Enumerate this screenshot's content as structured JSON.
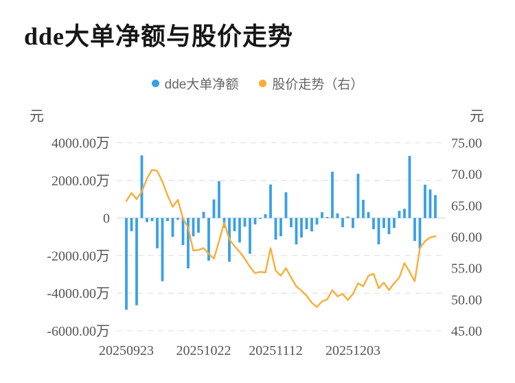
{
  "title": {
    "text": "dde大单净额与股价走势"
  },
  "legend": {
    "items": [
      {
        "label": "dde大单净额",
        "color": "#38a0e8",
        "marker": "circle"
      },
      {
        "label": "股价走势（右）",
        "color": "#fbad34",
        "marker": "circle"
      }
    ]
  },
  "axes": {
    "left": {
      "unit": "元",
      "tick_labels": [
        "4000.00万",
        "2000.00万",
        "0",
        "-2000.00万",
        "-4000.00万",
        "-6000.00万"
      ]
    },
    "right": {
      "unit": "元",
      "tick_labels": [
        "75.00",
        "70.00",
        "65.00",
        "60.00",
        "55.00",
        "50.00",
        "45.00"
      ]
    },
    "x": {
      "tick_labels": [
        {
          "index": 0,
          "label": "20250923"
        },
        {
          "index": 15,
          "label": "20251022"
        },
        {
          "index": 29,
          "label": "20251112"
        },
        {
          "index": 44,
          "label": "20251203"
        }
      ]
    }
  },
  "chart_data": {
    "type": "bar+line",
    "title": "dde大单净额与股价走势",
    "x_visible_tick_labels": [
      "20250923",
      "20251022",
      "20251112",
      "20251203"
    ],
    "left_axis": {
      "unit": "元",
      "range_wan": [
        -6000,
        4000
      ],
      "tick_step_wan": 2000
    },
    "right_axis": {
      "unit": "元",
      "range": [
        45,
        75
      ],
      "tick_step": 5
    },
    "grid": {
      "horizontal": "dashed",
      "zero_line": "solid"
    },
    "legend_position": "top-center",
    "series": [
      {
        "name": "dde大单净额",
        "type": "bar",
        "axis": "left",
        "unit": "万元",
        "color": "#38a0e8",
        "values": [
          -4880,
          -700,
          -4640,
          3330,
          -220,
          -160,
          -1610,
          -3360,
          -160,
          -1000,
          -100,
          -1440,
          -2680,
          -970,
          -780,
          330,
          -2270,
          990,
          1960,
          -520,
          -2330,
          -700,
          -1300,
          -460,
          -1900,
          -340,
          -50,
          200,
          1780,
          -1150,
          -970,
          1370,
          -490,
          -1400,
          -1040,
          -600,
          -710,
          -350,
          310,
          60,
          2460,
          240,
          -490,
          80,
          -530,
          2350,
          970,
          310,
          -600,
          -1400,
          -530,
          -860,
          -530,
          380,
          490,
          3300,
          -1220,
          -1620,
          1770,
          1520,
          1220
        ]
      },
      {
        "name": "股价走势（右）",
        "type": "line",
        "axis": "right",
        "unit": "元",
        "color": "#fbad34",
        "values": [
          65.7,
          67.0,
          66.0,
          67.2,
          69.3,
          70.7,
          70.5,
          68.8,
          66.6,
          64.8,
          65.9,
          62.9,
          61.5,
          57.8,
          57.9,
          58.2,
          57.3,
          56.5,
          59.3,
          62.3,
          59.6,
          58.5,
          57.6,
          56.5,
          55.2,
          54.2,
          54.4,
          54.3,
          58.2,
          54.6,
          53.8,
          55.0,
          53.5,
          52.1,
          51.4,
          50.6,
          49.5,
          48.8,
          49.7,
          50.0,
          51.5,
          50.5,
          50.9,
          49.9,
          50.9,
          52.6,
          52.1,
          53.8,
          54.1,
          51.8,
          52.7,
          51.5,
          52.6,
          53.5,
          55.8,
          54.4,
          52.9,
          58.2,
          59.3,
          59.9,
          60.1
        ]
      }
    ]
  }
}
